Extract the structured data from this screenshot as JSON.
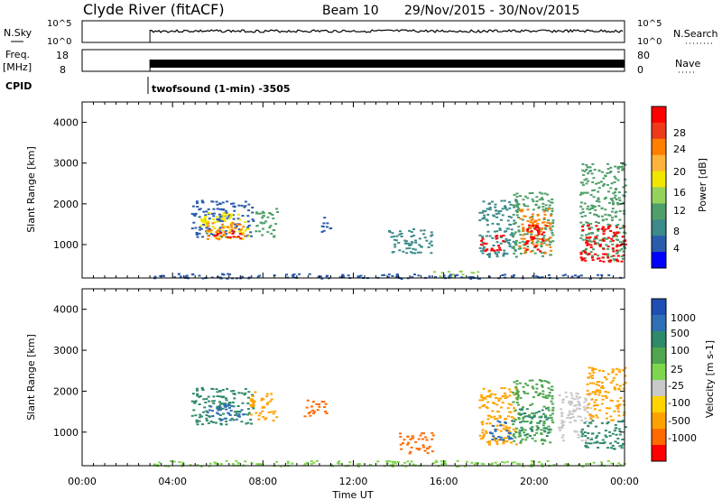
{
  "header": {
    "title": "Clyde River (fitACF)",
    "beam": "Beam 10",
    "date_range": "29/Nov/2015 - 30/Nov/2015"
  },
  "status_panels": {
    "nsky": {
      "label": "N.Sky",
      "right_label": "N.Search",
      "left_ticks": [
        "10^5",
        "10^0"
      ],
      "right_ticks": [
        "10^5",
        "10^0"
      ]
    },
    "freq": {
      "label_top": "Freq.",
      "label_bottom": "[MHz]",
      "right_label": "Nave",
      "left_ticks": [
        "18",
        "8"
      ],
      "right_ticks": [
        "80",
        "0"
      ]
    },
    "cpid": {
      "label": "CPID",
      "text": "twofsound (1-min) -3505"
    },
    "data_start_hour": 3.0
  },
  "chart_data": [
    {
      "type": "heatmap",
      "panel": "power",
      "ylabel": "Slant Range [km]",
      "ylim": [
        180,
        4500
      ],
      "yticks": [
        1000,
        2000,
        3000,
        4000
      ],
      "xlim": [
        0,
        24
      ],
      "colorbar": {
        "label": "Power [dB]",
        "ticks": [
          "28",
          "24",
          "20",
          "16",
          "12",
          "8",
          "4"
        ],
        "colors": [
          "#ff0000",
          "#ee3a1a",
          "#ff7f00",
          "#ffb33b",
          "#f0e600",
          "#94d35b",
          "#4f9f6a",
          "#3c8a8a",
          "#2b5cab",
          "#0000ff"
        ]
      },
      "regions": [
        {
          "t0": 4.8,
          "t1": 7.6,
          "r0": 1200,
          "r1": 2100,
          "color": "#2b5cab"
        },
        {
          "t0": 5.2,
          "t1": 7.4,
          "r0": 1150,
          "r1": 1800,
          "color": "#f0e600"
        },
        {
          "t0": 5.5,
          "t1": 7.2,
          "r0": 1150,
          "r1": 1550,
          "color": "#ff7f00"
        },
        {
          "t0": 5.8,
          "t1": 7.0,
          "r0": 1150,
          "r1": 1350,
          "color": "#ff0000"
        },
        {
          "t0": 7.6,
          "t1": 8.6,
          "r0": 1200,
          "r1": 1900,
          "color": "#4f9f6a"
        },
        {
          "t0": 17.5,
          "t1": 19.2,
          "r0": 700,
          "r1": 2100,
          "color": "#3c8a8a"
        },
        {
          "t0": 17.6,
          "t1": 18.6,
          "r0": 850,
          "r1": 1250,
          "color": "#ff0000"
        },
        {
          "t0": 19.0,
          "t1": 20.8,
          "r0": 700,
          "r1": 2300,
          "color": "#4f9f6a"
        },
        {
          "t0": 19.3,
          "t1": 20.7,
          "r0": 800,
          "r1": 1900,
          "color": "#ff7f00"
        },
        {
          "t0": 19.5,
          "t1": 20.5,
          "r0": 850,
          "r1": 1500,
          "color": "#ff0000"
        },
        {
          "t0": 22.0,
          "t1": 24.0,
          "r0": 600,
          "r1": 3000,
          "color": "#4f9f6a"
        },
        {
          "t0": 22.0,
          "t1": 24.0,
          "r0": 600,
          "r1": 1500,
          "color": "#ff0000"
        },
        {
          "t0": 10.5,
          "t1": 11.0,
          "r0": 1300,
          "r1": 1700,
          "color": "#2b5cab"
        },
        {
          "t0": 13.5,
          "t1": 15.5,
          "r0": 800,
          "r1": 1400,
          "color": "#3c8a8a"
        },
        {
          "t0": 15.5,
          "t1": 17.5,
          "r0": 200,
          "r1": 380,
          "color": "#94d35b"
        },
        {
          "t0": 3.0,
          "t1": 24.0,
          "r0": 180,
          "r1": 300,
          "color": "#2b5cab"
        }
      ]
    },
    {
      "type": "heatmap",
      "panel": "velocity",
      "ylabel": "Slant Range [km]",
      "xlabel": "Time UT",
      "ylim": [
        180,
        4500
      ],
      "yticks": [
        1000,
        2000,
        3000,
        4000
      ],
      "xlim": [
        0,
        24
      ],
      "xticks": [
        "00:00",
        "04:00",
        "08:00",
        "12:00",
        "16:00",
        "20:00",
        "00:00"
      ],
      "colorbar": {
        "label": "Velocity [m s-1]",
        "ticks": [
          "1000",
          "500",
          "100",
          "25",
          "-25",
          "-100",
          "-500",
          "-1000"
        ],
        "colors": [
          "#1f4fb5",
          "#2f6fb5",
          "#2f8a6a",
          "#4fa64f",
          "#7ed64f",
          "#c8c8c8",
          "#ffd400",
          "#ffa200",
          "#ff6a00",
          "#ff0000"
        ]
      },
      "regions": [
        {
          "t0": 4.8,
          "t1": 7.6,
          "r0": 1200,
          "r1": 2100,
          "color": "#2f8a6a"
        },
        {
          "t0": 5.5,
          "t1": 7.2,
          "r0": 1300,
          "r1": 1700,
          "color": "#2f6fb5"
        },
        {
          "t0": 7.4,
          "t1": 8.6,
          "r0": 1300,
          "r1": 2000,
          "color": "#ffa200"
        },
        {
          "t0": 9.8,
          "t1": 10.8,
          "r0": 1400,
          "r1": 1800,
          "color": "#ff6a00"
        },
        {
          "t0": 14.0,
          "t1": 15.5,
          "r0": 500,
          "r1": 1000,
          "color": "#ff6a00"
        },
        {
          "t0": 17.5,
          "t1": 19.2,
          "r0": 700,
          "r1": 2100,
          "color": "#ffa200"
        },
        {
          "t0": 18.0,
          "t1": 19.0,
          "r0": 800,
          "r1": 1300,
          "color": "#2f6fb5"
        },
        {
          "t0": 19.0,
          "t1": 20.8,
          "r0": 700,
          "r1": 2300,
          "color": "#4fa64f"
        },
        {
          "t0": 19.3,
          "t1": 20.6,
          "r0": 900,
          "r1": 1600,
          "color": "#2f8a6a"
        },
        {
          "t0": 21.0,
          "t1": 22.5,
          "r0": 800,
          "r1": 2000,
          "color": "#c8c8c8"
        },
        {
          "t0": 22.0,
          "t1": 24.0,
          "r0": 600,
          "r1": 1300,
          "color": "#2f8a6a"
        },
        {
          "t0": 22.3,
          "t1": 24.0,
          "r0": 1300,
          "r1": 2600,
          "color": "#ffa200"
        },
        {
          "t0": 3.0,
          "t1": 24.0,
          "r0": 180,
          "r1": 320,
          "color": "#7ed64f"
        }
      ]
    }
  ]
}
